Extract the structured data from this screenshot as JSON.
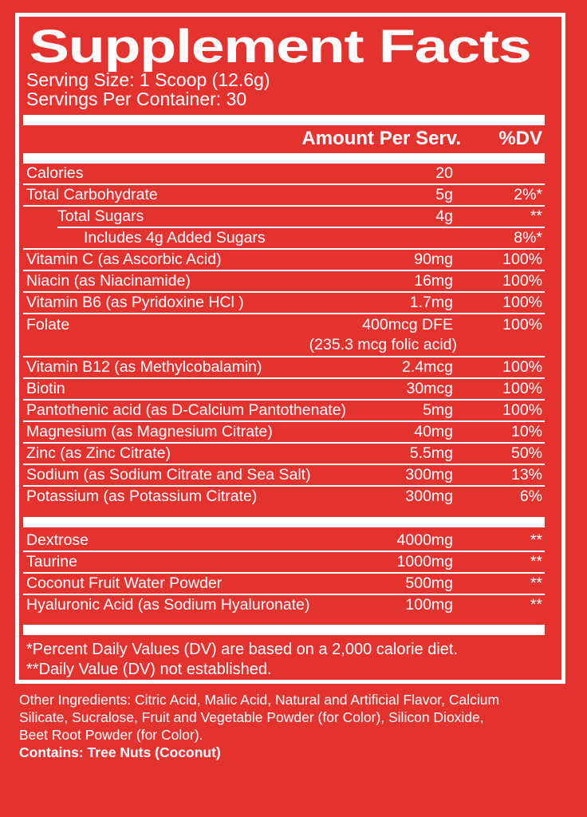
{
  "colors": {
    "background": "#e4322f",
    "text": "#ffffff"
  },
  "label": {
    "title": "Supplement Facts",
    "serving_size": "Serving Size: 1 Scoop (12.6g)",
    "servings_per_container": "Servings Per Container: 30",
    "columns": {
      "amount": "Amount Per Serv.",
      "dv": "%DV"
    },
    "nutrients": [
      {
        "name": "Calories",
        "amount": "20",
        "dv": "",
        "indent": 0
      },
      {
        "name": "Total Carbohydrate",
        "amount": "5g",
        "dv": "2%*",
        "indent": 0
      },
      {
        "name": "Total Sugars",
        "amount": "4g",
        "dv": "**",
        "indent": 1
      },
      {
        "name": "Includes 4g Added Sugars",
        "amount": "",
        "dv": "8%*",
        "indent": 2
      },
      {
        "name": "Vitamin C (as Ascorbic Acid)",
        "amount": "90mg",
        "dv": "100%",
        "indent": 0
      },
      {
        "name": "Niacin (as Niacinamide)",
        "amount": "16mg",
        "dv": "100%",
        "indent": 0
      },
      {
        "name": "Vitamin B6 (as Pyridoxine HCl )",
        "amount": "1.7mg",
        "dv": "100%",
        "indent": 0
      },
      {
        "name": "Folate",
        "amount": "400mcg DFE",
        "dv": "100%",
        "note": "(235.3 mcg folic acid)",
        "indent": 0
      },
      {
        "name": "Vitamin B12 (as Methylcobalamin)",
        "amount": "2.4mcg",
        "dv": "100%",
        "indent": 0
      },
      {
        "name": "Biotin",
        "amount": "30mcg",
        "dv": "100%",
        "indent": 0
      },
      {
        "name": "Pantothenic acid (as D-Calcium Pantothenate)",
        "amount": "5mg",
        "dv": "100%",
        "indent": 0
      },
      {
        "name": "Magnesium (as Magnesium Citrate)",
        "amount": "40mg",
        "dv": "10%",
        "indent": 0
      },
      {
        "name": "Zinc (as Zinc Citrate)",
        "amount": "5.5mg",
        "dv": "50%",
        "indent": 0
      },
      {
        "name": "Sodium (as Sodium Citrate and Sea Salt)",
        "amount": "300mg",
        "dv": "13%",
        "indent": 0
      },
      {
        "name": "Potassium (as Potassium Citrate)",
        "amount": "300mg",
        "dv": "6%",
        "indent": 0
      }
    ],
    "other_actives": [
      {
        "name": "Dextrose",
        "amount": "4000mg",
        "dv": "**"
      },
      {
        "name": "Taurine",
        "amount": "1000mg",
        "dv": "**"
      },
      {
        "name": "Coconut Fruit Water Powder",
        "amount": "500mg",
        "dv": "**"
      },
      {
        "name": "Hyaluronic Acid (as Sodium Hyaluronate)",
        "amount": "100mg",
        "dv": "**"
      }
    ],
    "footnotes": [
      "*Percent Daily Values (DV) are based on a 2,000 calorie diet.",
      "**Daily Value (DV) not established."
    ],
    "other_ingredients_lines": [
      "Other Ingredients: Citric Acid, Malic Acid, Natural and Artificial Flavor, Calcium",
      "Silicate, Sucralose, Fruit and Vegetable Powder (for Color), Silicon Dioxide,",
      "Beet Root Powder (for Color)."
    ],
    "contains": "Contains: Tree Nuts (Coconut)"
  }
}
